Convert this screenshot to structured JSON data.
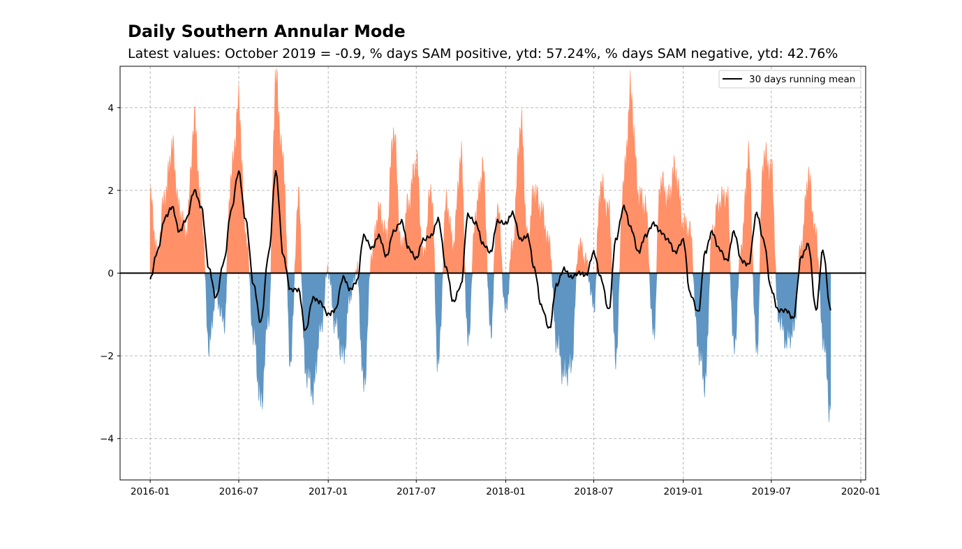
{
  "chart_data": {
    "type": "area",
    "title": "Daily Southern Annular Mode",
    "subtitle": "Latest values: October 2019 = -0.9, % days SAM positive, ytd: 57.24%, % days SAM negative, ytd: 42.76%",
    "xlabel": "",
    "ylabel": "",
    "x_range": [
      "2015-10-31",
      "2020-01-11"
    ],
    "ylim": [
      -5,
      5
    ],
    "y_ticks": [
      -4,
      -2,
      0,
      2,
      4
    ],
    "y_tick_labels": [
      "−4",
      "−2",
      "0",
      "2",
      "4"
    ],
    "x_ticks": [
      "2016-01",
      "2016-07",
      "2017-01",
      "2017-07",
      "2018-01",
      "2018-07",
      "2019-01",
      "2019-07",
      "2020-01"
    ],
    "x_tick_dates": [
      "2016-01-01",
      "2016-07-01",
      "2017-01-01",
      "2017-07-01",
      "2018-01-01",
      "2018-07-01",
      "2019-01-01",
      "2019-07-01",
      "2020-01-01"
    ],
    "grid": true,
    "legend": {
      "position": "top-right",
      "entries": [
        "30 days running mean"
      ]
    },
    "colors": {
      "positive": "#FF9068",
      "negative": "#5E95C2",
      "mean_line": "#000000",
      "zero_line": "#000000"
    },
    "series": [
      {
        "kind": "daily_filled",
        "dates": [
          "2016-01-01",
          "2016-01-15",
          "2016-02-01",
          "2016-02-15",
          "2016-03-01",
          "2016-03-15",
          "2016-04-01",
          "2016-04-15",
          "2016-05-01",
          "2016-05-15",
          "2016-06-01",
          "2016-06-15",
          "2016-07-01",
          "2016-07-15",
          "2016-08-01",
          "2016-08-15",
          "2016-09-01",
          "2016-09-15",
          "2016-10-01",
          "2016-10-15",
          "2016-11-01",
          "2016-11-15",
          "2016-12-01",
          "2016-12-15",
          "2017-01-01",
          "2017-01-15",
          "2017-02-01",
          "2017-02-15",
          "2017-03-01",
          "2017-03-15",
          "2017-04-01",
          "2017-04-15",
          "2017-05-01",
          "2017-05-15",
          "2017-06-01",
          "2017-06-15",
          "2017-07-01",
          "2017-07-15",
          "2017-08-01",
          "2017-08-15",
          "2017-09-01",
          "2017-09-15",
          "2017-10-01",
          "2017-10-15",
          "2017-11-01",
          "2017-11-15",
          "2017-12-01",
          "2017-12-15",
          "2018-01-01",
          "2018-01-15",
          "2018-02-01",
          "2018-02-15",
          "2018-03-01",
          "2018-03-15",
          "2018-04-01",
          "2018-04-15",
          "2018-05-01",
          "2018-05-15",
          "2018-06-01",
          "2018-06-15",
          "2018-07-01",
          "2018-07-15",
          "2018-08-01",
          "2018-08-15",
          "2018-09-01",
          "2018-09-15",
          "2018-10-01",
          "2018-10-15",
          "2018-11-01",
          "2018-11-15",
          "2018-12-01",
          "2018-12-15",
          "2019-01-01",
          "2019-01-15",
          "2019-02-01",
          "2019-02-15",
          "2019-03-01",
          "2019-03-15",
          "2019-04-01",
          "2019-04-15",
          "2019-05-01",
          "2019-05-15",
          "2019-06-01",
          "2019-06-15",
          "2019-07-01",
          "2019-07-15",
          "2019-08-01",
          "2019-08-15",
          "2019-09-01",
          "2019-09-15",
          "2019-10-01",
          "2019-10-15",
          "2019-10-31"
        ],
        "values": [
          1.8,
          0.5,
          1.9,
          3.0,
          1.5,
          1.0,
          3.6,
          1.5,
          -1.7,
          -0.5,
          -1.2,
          2.3,
          4.0,
          1.0,
          -1.5,
          -3.1,
          -1.0,
          4.6,
          2.6,
          -2.1,
          1.8,
          -2.3,
          -2.8,
          -1.4,
          0.1,
          -1.2,
          -2.0,
          -0.5,
          0.1,
          -2.7,
          0.5,
          1.5,
          0.9,
          3.4,
          0.6,
          1.7,
          2.7,
          0.4,
          2.0,
          -2.2,
          1.7,
          0.7,
          2.8,
          -1.6,
          1.5,
          2.5,
          -1.4,
          1.6,
          -0.9,
          0.7,
          3.6,
          0.8,
          2.0,
          1.5,
          0.7,
          -1.6,
          -2.4,
          -2.2,
          0.7,
          0.3,
          -0.8,
          2.1,
          1.5,
          -2.0,
          2.3,
          4.3,
          1.9,
          1.6,
          -1.5,
          2.2,
          1.8,
          2.5,
          1.2,
          1.0,
          -1.8,
          -2.6,
          0.9,
          1.7,
          1.9,
          -1.8,
          0.7,
          2.8,
          -1.9,
          2.8,
          2.5,
          -1.0,
          -1.6,
          -1.4,
          0.7,
          2.3,
          0.9,
          -1.5,
          -3.3
        ]
      },
      {
        "name": "30 days running mean",
        "kind": "line",
        "dates": [
          "2016-01-01",
          "2016-01-15",
          "2016-02-01",
          "2016-02-15",
          "2016-03-01",
          "2016-03-15",
          "2016-04-01",
          "2016-04-15",
          "2016-05-01",
          "2016-05-15",
          "2016-06-01",
          "2016-06-15",
          "2016-07-01",
          "2016-07-15",
          "2016-08-01",
          "2016-08-15",
          "2016-09-01",
          "2016-09-15",
          "2016-10-01",
          "2016-10-15",
          "2016-11-01",
          "2016-11-15",
          "2016-12-01",
          "2016-12-15",
          "2017-01-01",
          "2017-01-15",
          "2017-02-01",
          "2017-02-15",
          "2017-03-01",
          "2017-03-15",
          "2017-04-01",
          "2017-04-15",
          "2017-05-01",
          "2017-05-15",
          "2017-06-01",
          "2017-06-15",
          "2017-07-01",
          "2017-07-15",
          "2017-08-01",
          "2017-08-15",
          "2017-09-01",
          "2017-09-15",
          "2017-10-01",
          "2017-10-15",
          "2017-11-01",
          "2017-11-15",
          "2017-12-01",
          "2017-12-15",
          "2018-01-01",
          "2018-01-15",
          "2018-02-01",
          "2018-02-15",
          "2018-03-01",
          "2018-03-15",
          "2018-04-01",
          "2018-04-15",
          "2018-05-01",
          "2018-05-15",
          "2018-06-01",
          "2018-06-15",
          "2018-07-01",
          "2018-07-15",
          "2018-08-01",
          "2018-08-15",
          "2018-09-01",
          "2018-09-15",
          "2018-10-01",
          "2018-10-15",
          "2018-11-01",
          "2018-11-15",
          "2018-12-01",
          "2018-12-15",
          "2019-01-01",
          "2019-01-15",
          "2019-02-01",
          "2019-02-15",
          "2019-03-01",
          "2019-03-15",
          "2019-04-01",
          "2019-04-15",
          "2019-05-01",
          "2019-05-15",
          "2019-06-01",
          "2019-06-15",
          "2019-07-01",
          "2019-07-15",
          "2019-08-01",
          "2019-08-15",
          "2019-09-01",
          "2019-09-15",
          "2019-10-01",
          "2019-10-15",
          "2019-10-31"
        ],
        "values": [
          -0.15,
          0.5,
          1.35,
          1.6,
          1.0,
          1.3,
          2.0,
          1.6,
          0.1,
          -0.6,
          0.3,
          1.5,
          2.45,
          1.3,
          -0.3,
          -1.2,
          0.5,
          2.45,
          0.4,
          -0.4,
          -0.4,
          -1.4,
          -0.6,
          -0.7,
          -1.0,
          -0.9,
          -0.1,
          -0.4,
          -0.2,
          0.9,
          0.6,
          0.9,
          0.4,
          1.0,
          1.25,
          0.6,
          0.35,
          0.8,
          0.9,
          1.3,
          0.1,
          -0.7,
          -0.3,
          1.4,
          1.2,
          0.7,
          0.5,
          1.25,
          1.2,
          1.45,
          0.8,
          0.9,
          0.1,
          -0.8,
          -1.35,
          -0.3,
          0.1,
          -0.1,
          0.0,
          -0.05,
          0.5,
          -0.1,
          -0.9,
          0.8,
          1.6,
          1.1,
          0.5,
          0.9,
          1.2,
          1.0,
          0.8,
          0.5,
          0.8,
          -0.5,
          -0.95,
          0.5,
          1.0,
          0.6,
          0.3,
          1.0,
          0.3,
          0.2,
          1.45,
          0.8,
          -0.4,
          -0.9,
          -0.9,
          -1.1,
          0.4,
          0.7,
          -0.9,
          0.55,
          -0.9
        ]
      }
    ]
  }
}
